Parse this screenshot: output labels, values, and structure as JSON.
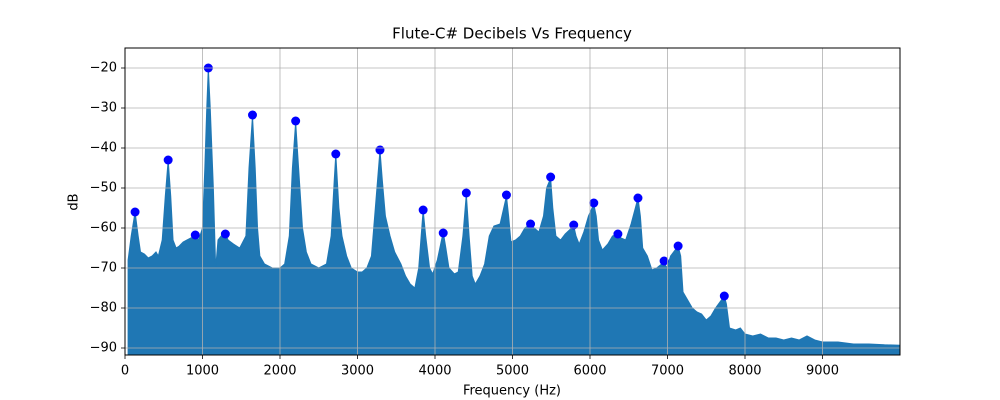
{
  "chart_data": {
    "type": "area",
    "title": "Flute-C# Decibels Vs Frequency",
    "x_label": "Frequency (Hz)",
    "y_label": "dB",
    "xlim": [
      0,
      10000
    ],
    "ylim": [
      -91.75,
      -15
    ],
    "xticks": [
      0,
      1000,
      2000,
      3000,
      4000,
      5000,
      6000,
      7000,
      8000,
      9000
    ],
    "yticks": [
      {
        "value": -90,
        "label": "−90"
      },
      {
        "value": -80,
        "label": "−80"
      },
      {
        "value": -70,
        "label": "−70"
      },
      {
        "value": -60,
        "label": "−60"
      },
      {
        "value": -50,
        "label": "−50"
      },
      {
        "value": -40,
        "label": "−40"
      },
      {
        "value": -30,
        "label": "−30"
      },
      {
        "value": -20,
        "label": "−20"
      }
    ],
    "grid": true,
    "series": [
      {
        "type": "area",
        "color": "#1f77b4",
        "x": [
          40,
          80,
          130,
          170,
          200,
          250,
          300,
          350,
          400,
          430,
          480,
          520,
          557,
          590,
          620,
          660,
          700,
          750,
          800,
          850,
          907,
          950,
          1000,
          1030,
          1055,
          1075,
          1100,
          1140,
          1170,
          1200,
          1240,
          1295,
          1330,
          1400,
          1480,
          1560,
          1600,
          1645,
          1680,
          1710,
          1740,
          1800,
          1900,
          2000,
          2060,
          2120,
          2160,
          2202,
          2240,
          2290,
          2340,
          2400,
          2500,
          2600,
          2660,
          2700,
          2720,
          2760,
          2800,
          2860,
          2920,
          3000,
          3060,
          3120,
          3180,
          3230,
          3290,
          3320,
          3360,
          3420,
          3480,
          3560,
          3620,
          3680,
          3740,
          3790,
          3847,
          3880,
          3930,
          3970,
          4030,
          4106,
          4140,
          4180,
          4250,
          4300,
          4360,
          4404,
          4440,
          4480,
          4520,
          4580,
          4640,
          4700,
          4760,
          4840,
          4922,
          4950,
          4980,
          5040,
          5100,
          5160,
          5233,
          5280,
          5340,
          5400,
          5440,
          5492,
          5520,
          5560,
          5620,
          5680,
          5790,
          5820,
          5860,
          5920,
          5980,
          6049,
          6080,
          6110,
          6160,
          6230,
          6290,
          6360,
          6400,
          6460,
          6530,
          6619,
          6650,
          6680,
          6740,
          6800,
          6860,
          6956,
          6990,
          7040,
          7137,
          7170,
          7200,
          7260,
          7320,
          7380,
          7440,
          7500,
          7560,
          7620,
          7733,
          7760,
          7800,
          7880,
          7940,
          8000,
          8100,
          8200,
          8300,
          8400,
          8500,
          8600,
          8700,
          8800,
          8900,
          9000,
          9200,
          9400,
          9600,
          9800,
          10000
        ],
        "values": [
          -68,
          -62,
          -56,
          -62,
          -66,
          -66.5,
          -67.5,
          -67,
          -66,
          -67,
          -63,
          -52,
          -43,
          -52,
          -63,
          -65,
          -64.5,
          -63.5,
          -63,
          -62.5,
          -62,
          -63,
          -60,
          -45,
          -30,
          -20,
          -30,
          -50,
          -70,
          -63,
          -62,
          -61.5,
          -63,
          -64,
          -65,
          -62,
          -45,
          -32,
          -45,
          -60,
          -67,
          -69,
          -70,
          -70,
          -69,
          -62,
          -45,
          -33.5,
          -45,
          -60,
          -66,
          -69,
          -70,
          -69,
          -62,
          -48,
          -41.5,
          -55,
          -62,
          -67,
          -70,
          -71,
          -71,
          -70,
          -67,
          -55,
          -40.5,
          -48,
          -57,
          -62,
          -66,
          -69,
          -72,
          -74,
          -75,
          -70,
          -55.5,
          -62,
          -70,
          -71.5,
          -68,
          -61,
          -65,
          -70,
          -71.5,
          -71,
          -62,
          -51.5,
          -62,
          -72,
          -74,
          -72,
          -69,
          -62,
          -59.5,
          -59,
          -52,
          -57,
          -63.5,
          -63,
          -62,
          -60,
          -59,
          -60,
          -61,
          -57,
          -50,
          -47.5,
          -55,
          -62,
          -63,
          -61.5,
          -59.5,
          -62,
          -64,
          -61,
          -57,
          -54,
          -57,
          -63,
          -65.5,
          -64,
          -62,
          -61.5,
          -62.5,
          -63,
          -59,
          -52.5,
          -57,
          -65,
          -67,
          -70.5,
          -70,
          -68.5,
          -70,
          -67,
          -64.5,
          -67,
          -76,
          -78,
          -80,
          -81,
          -81.5,
          -83,
          -82,
          -80,
          -77,
          -79,
          -85,
          -85.5,
          -85,
          -86.5,
          -87,
          -86.5,
          -87.5,
          -87.5,
          -88,
          -87.5,
          -88,
          -87,
          -88,
          -88.5,
          -88.5,
          -89,
          -89,
          -89.2,
          -89.3
        ]
      },
      {
        "type": "scatter",
        "color": "#0000ff",
        "x": [
          130,
          557,
          907,
          1075,
          1295,
          1645,
          2202,
          2720,
          3290,
          3847,
          4106,
          4404,
          4922,
          5233,
          5492,
          5790,
          6049,
          6360,
          6619,
          6956,
          7137,
          7733
        ],
        "values": [
          -56,
          -43,
          -61.75,
          -20,
          -61.5,
          -31.75,
          -33.25,
          -41.5,
          -40.5,
          -55.5,
          -61.25,
          -51.25,
          -51.75,
          -59,
          -47.25,
          -59.25,
          -53.75,
          -61.5,
          -52.5,
          -68.25,
          -64.5,
          -77
        ]
      }
    ]
  }
}
